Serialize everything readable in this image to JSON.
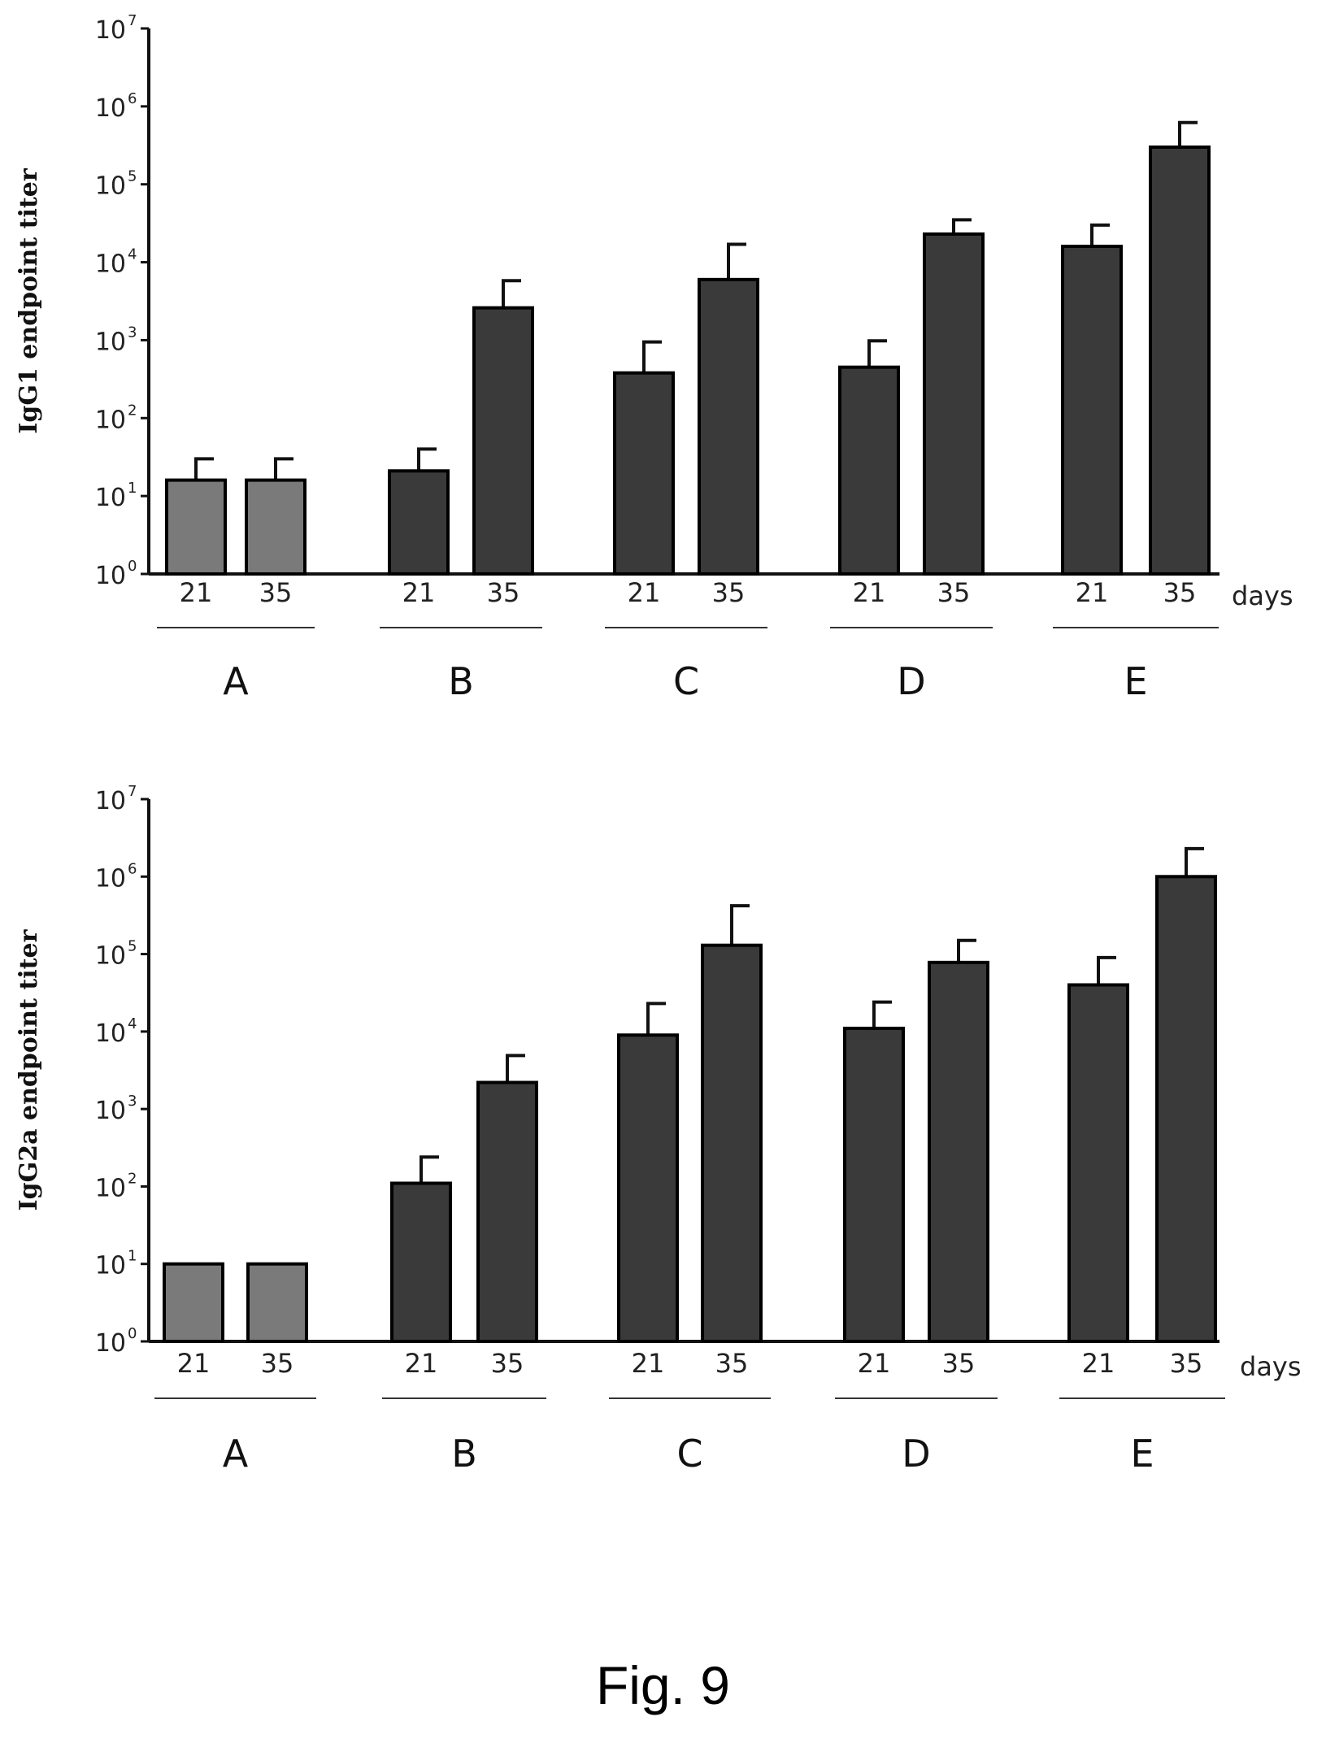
{
  "caption": "Fig. 9",
  "chart_data": [
    {
      "type": "bar",
      "ylabel": "IgG1 endpoint titer",
      "xlabel": "days",
      "yscale": "log",
      "ylim": [
        1,
        10000000
      ],
      "ytick_base": "10",
      "ytick_exponents": [
        "0",
        "1",
        "2",
        "3",
        "4",
        "5",
        "6",
        "7"
      ],
      "groups": [
        "A",
        "B",
        "C",
        "D",
        "E"
      ],
      "days": [
        "21",
        "35"
      ],
      "series": [
        {
          "group": "A",
          "day": "21",
          "value": 16,
          "error": 30,
          "color": "#7a7a7a"
        },
        {
          "group": "A",
          "day": "35",
          "value": 16,
          "error": 30,
          "color": "#7a7a7a"
        },
        {
          "group": "B",
          "day": "21",
          "value": 21,
          "error": 40,
          "color": "#3a3a3a"
        },
        {
          "group": "B",
          "day": "35",
          "value": 2600,
          "error": 5800,
          "color": "#3a3a3a"
        },
        {
          "group": "C",
          "day": "21",
          "value": 380,
          "error": 950,
          "color": "#3a3a3a"
        },
        {
          "group": "C",
          "day": "35",
          "value": 6000,
          "error": 17000,
          "color": "#3a3a3a"
        },
        {
          "group": "D",
          "day": "21",
          "value": 450,
          "error": 980,
          "color": "#3a3a3a"
        },
        {
          "group": "D",
          "day": "35",
          "value": 23000,
          "error": 35000,
          "color": "#3a3a3a"
        },
        {
          "group": "E",
          "day": "21",
          "value": 16000,
          "error": 30000,
          "color": "#3a3a3a"
        },
        {
          "group": "E",
          "day": "35",
          "value": 300000,
          "error": 620000,
          "color": "#3a3a3a"
        }
      ]
    },
    {
      "type": "bar",
      "ylabel": "IgG2a endpoint titer",
      "xlabel": "days",
      "yscale": "log",
      "ylim": [
        1,
        10000000
      ],
      "ytick_base": "10",
      "ytick_exponents": [
        "0",
        "1",
        "2",
        "3",
        "4",
        "5",
        "6",
        "7"
      ],
      "groups": [
        "A",
        "B",
        "C",
        "D",
        "E"
      ],
      "days": [
        "21",
        "35"
      ],
      "series": [
        {
          "group": "A",
          "day": "21",
          "value": 10,
          "error": null,
          "color": "#7a7a7a"
        },
        {
          "group": "A",
          "day": "35",
          "value": 10,
          "error": null,
          "color": "#7a7a7a"
        },
        {
          "group": "B",
          "day": "21",
          "value": 110,
          "error": 240,
          "color": "#3a3a3a"
        },
        {
          "group": "B",
          "day": "35",
          "value": 2200,
          "error": 4900,
          "color": "#3a3a3a"
        },
        {
          "group": "C",
          "day": "21",
          "value": 9000,
          "error": 23000,
          "color": "#3a3a3a"
        },
        {
          "group": "C",
          "day": "35",
          "value": 130000,
          "error": 420000,
          "color": "#3a3a3a"
        },
        {
          "group": "D",
          "day": "21",
          "value": 11000,
          "error": 24000,
          "color": "#3a3a3a"
        },
        {
          "group": "D",
          "day": "35",
          "value": 78000,
          "error": 150000,
          "color": "#3a3a3a"
        },
        {
          "group": "E",
          "day": "21",
          "value": 40000,
          "error": 90000,
          "color": "#3a3a3a"
        },
        {
          "group": "E",
          "day": "35",
          "value": 1000000,
          "error": 2300000,
          "color": "#3a3a3a"
        }
      ]
    }
  ]
}
